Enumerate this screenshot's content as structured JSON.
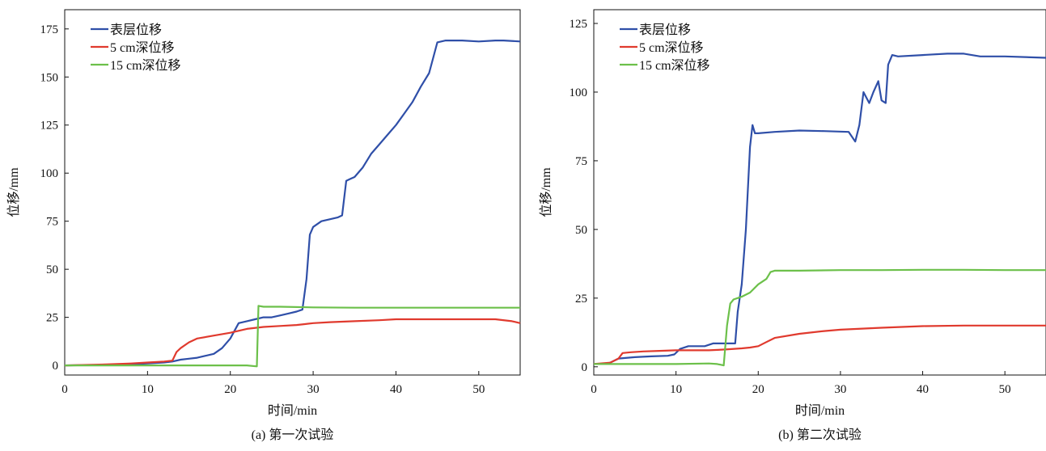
{
  "chart_data": [
    {
      "type": "line",
      "caption": "(a) 第一次试验",
      "xlabel": "时间/min",
      "ylabel": "位移/mm",
      "xlim": [
        0,
        55
      ],
      "ylim": [
        -5,
        185
      ],
      "xticks": [
        0,
        10,
        20,
        30,
        40,
        50
      ],
      "yticks": [
        0,
        25,
        50,
        75,
        100,
        125,
        150,
        175
      ],
      "legend_position": "top-left",
      "series": [
        {
          "name": "表层位移",
          "color": "#2f4fa8",
          "points": [
            [
              0,
              0
            ],
            [
              5,
              0.3
            ],
            [
              8,
              0.6
            ],
            [
              10,
              1
            ],
            [
              12,
              1.5
            ],
            [
              13,
              2
            ],
            [
              14,
              3
            ],
            [
              15,
              3.5
            ],
            [
              16,
              4
            ],
            [
              17,
              5
            ],
            [
              18,
              6
            ],
            [
              19,
              9
            ],
            [
              20,
              14
            ],
            [
              21,
              22
            ],
            [
              22,
              23
            ],
            [
              23,
              24
            ],
            [
              24,
              25
            ],
            [
              25,
              25
            ],
            [
              26,
              26
            ],
            [
              27,
              27
            ],
            [
              28,
              28
            ],
            [
              28.7,
              29
            ],
            [
              29.2,
              45
            ],
            [
              29.6,
              68
            ],
            [
              30,
              72
            ],
            [
              31,
              75
            ],
            [
              32,
              76
            ],
            [
              33,
              77
            ],
            [
              33.5,
              78
            ],
            [
              34,
              96
            ],
            [
              34.5,
              97
            ],
            [
              35,
              98
            ],
            [
              36,
              103
            ],
            [
              37,
              110
            ],
            [
              38,
              115
            ],
            [
              39,
              120
            ],
            [
              40,
              125
            ],
            [
              41,
              131
            ],
            [
              42,
              137
            ],
            [
              43,
              145
            ],
            [
              44,
              152
            ],
            [
              44.5,
              160
            ],
            [
              45,
              168
            ],
            [
              46,
              169
            ],
            [
              48,
              169
            ],
            [
              50,
              168.5
            ],
            [
              52,
              169
            ],
            [
              53,
              169
            ],
            [
              55,
              168.5
            ]
          ]
        },
        {
          "name": "5 cm深位移",
          "color": "#e03a2e",
          "points": [
            [
              0,
              0
            ],
            [
              5,
              0.5
            ],
            [
              8,
              1
            ],
            [
              10,
              1.5
            ],
            [
              12,
              2
            ],
            [
              13,
              2.5
            ],
            [
              13.5,
              7
            ],
            [
              14,
              9
            ],
            [
              15,
              12
            ],
            [
              16,
              14
            ],
            [
              18,
              15.5
            ],
            [
              20,
              17
            ],
            [
              22,
              19
            ],
            [
              24,
              20
            ],
            [
              26,
              20.5
            ],
            [
              28,
              21
            ],
            [
              29,
              21.5
            ],
            [
              30,
              22
            ],
            [
              32,
              22.5
            ],
            [
              35,
              23
            ],
            [
              38,
              23.5
            ],
            [
              40,
              24
            ],
            [
              42,
              24
            ],
            [
              44,
              24
            ],
            [
              46,
              24
            ],
            [
              48,
              24
            ],
            [
              50,
              24
            ],
            [
              52,
              24
            ],
            [
              54,
              23
            ],
            [
              55,
              22
            ]
          ]
        },
        {
          "name": "15 cm深位移",
          "color": "#6cc04a",
          "points": [
            [
              0,
              0
            ],
            [
              5,
              0
            ],
            [
              10,
              0
            ],
            [
              15,
              0
            ],
            [
              20,
              0
            ],
            [
              22,
              0
            ],
            [
              23.2,
              -0.5
            ],
            [
              23.4,
              31
            ],
            [
              24,
              30.5
            ],
            [
              26,
              30.5
            ],
            [
              30,
              30.2
            ],
            [
              35,
              30
            ],
            [
              40,
              30
            ],
            [
              45,
              30
            ],
            [
              50,
              30
            ],
            [
              55,
              30
            ]
          ]
        }
      ]
    },
    {
      "type": "line",
      "caption": "(b) 第二次试验",
      "xlabel": "时间/min",
      "ylabel": "位移/mm",
      "xlim": [
        0,
        55
      ],
      "ylim": [
        -3,
        130
      ],
      "xticks": [
        0,
        10,
        20,
        30,
        40,
        50
      ],
      "yticks": [
        0,
        25,
        50,
        75,
        100,
        125
      ],
      "legend_position": "top-left",
      "series": [
        {
          "name": "表层位移",
          "color": "#2f4fa8",
          "points": [
            [
              0,
              1
            ],
            [
              1.5,
              1
            ],
            [
              2,
              1.5
            ],
            [
              3,
              3
            ],
            [
              5,
              3.5
            ],
            [
              7,
              3.8
            ],
            [
              9,
              4
            ],
            [
              9.8,
              4.5
            ],
            [
              10.5,
              6.5
            ],
            [
              11.5,
              7.5
            ],
            [
              13.5,
              7.5
            ],
            [
              14.5,
              8.5
            ],
            [
              16.5,
              8.5
            ],
            [
              17.2,
              8.5
            ],
            [
              17.5,
              20
            ],
            [
              18,
              30
            ],
            [
              18.5,
              50
            ],
            [
              19,
              80
            ],
            [
              19.3,
              88
            ],
            [
              19.6,
              85
            ],
            [
              20,
              85
            ],
            [
              22,
              85.5
            ],
            [
              25,
              86
            ],
            [
              28,
              85.8
            ],
            [
              31,
              85.5
            ],
            [
              31.8,
              82
            ],
            [
              32.3,
              88
            ],
            [
              32.8,
              100
            ],
            [
              33.5,
              96
            ],
            [
              34,
              100
            ],
            [
              34.6,
              104
            ],
            [
              35,
              97
            ],
            [
              35.5,
              96
            ],
            [
              35.8,
              110
            ],
            [
              36.3,
              113.5
            ],
            [
              37,
              113
            ],
            [
              40,
              113.5
            ],
            [
              43,
              114
            ],
            [
              45,
              114
            ],
            [
              47,
              113
            ],
            [
              50,
              113
            ],
            [
              55,
              112.5
            ]
          ]
        },
        {
          "name": "5 cm深位移",
          "color": "#e03a2e",
          "points": [
            [
              0,
              1
            ],
            [
              2,
              1.5
            ],
            [
              3,
              3
            ],
            [
              3.5,
              5
            ],
            [
              4.5,
              5.3
            ],
            [
              6,
              5.6
            ],
            [
              8,
              5.8
            ],
            [
              10,
              6
            ],
            [
              12,
              6
            ],
            [
              14,
              6
            ],
            [
              16,
              6.3
            ],
            [
              18,
              6.7
            ],
            [
              19,
              7
            ],
            [
              20,
              7.5
            ],
            [
              21,
              9
            ],
            [
              22,
              10.5
            ],
            [
              25,
              12
            ],
            [
              28,
              13
            ],
            [
              30,
              13.5
            ],
            [
              35,
              14.2
            ],
            [
              40,
              14.8
            ],
            [
              45,
              15
            ],
            [
              50,
              15
            ],
            [
              55,
              15
            ]
          ]
        },
        {
          "name": "15 cm深位移",
          "color": "#6cc04a",
          "points": [
            [
              0,
              1
            ],
            [
              5,
              1
            ],
            [
              10,
              1
            ],
            [
              14,
              1.2
            ],
            [
              15,
              1
            ],
            [
              15.8,
              0.5
            ],
            [
              16.2,
              15
            ],
            [
              16.6,
              23
            ],
            [
              17,
              24.5
            ],
            [
              18,
              25.5
            ],
            [
              19,
              27
            ],
            [
              20,
              30
            ],
            [
              21,
              32
            ],
            [
              21.5,
              34.5
            ],
            [
              22,
              35
            ],
            [
              25,
              35
            ],
            [
              30,
              35.2
            ],
            [
              35,
              35.2
            ],
            [
              40,
              35.3
            ],
            [
              45,
              35.3
            ],
            [
              50,
              35.2
            ],
            [
              55,
              35.2
            ]
          ]
        }
      ]
    }
  ]
}
